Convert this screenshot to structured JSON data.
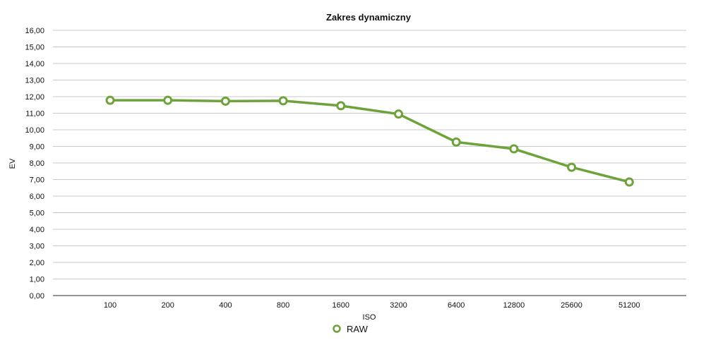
{
  "chart_data": {
    "type": "line",
    "title": "Zakres dynamiczny",
    "xlabel": "ISO",
    "ylabel": "EV",
    "categories": [
      "100",
      "200",
      "400",
      "800",
      "1600",
      "3200",
      "6400",
      "12800",
      "25600",
      "51200"
    ],
    "series": [
      {
        "name": "RAW",
        "values": [
          11.78,
          11.78,
          11.73,
          11.75,
          11.45,
          10.95,
          9.26,
          8.85,
          7.74,
          6.85
        ],
        "color": "#6ea23a"
      }
    ],
    "ylim": [
      0,
      16
    ],
    "yticks": [
      "0,00",
      "1,00",
      "2,00",
      "3,00",
      "4,00",
      "5,00",
      "6,00",
      "7,00",
      "8,00",
      "9,00",
      "10,00",
      "11,00",
      "12,00",
      "13,00",
      "14,00",
      "15,00",
      "16,00"
    ],
    "grid": true,
    "legend_position": "bottom-center",
    "marker": "hollow-circle"
  }
}
